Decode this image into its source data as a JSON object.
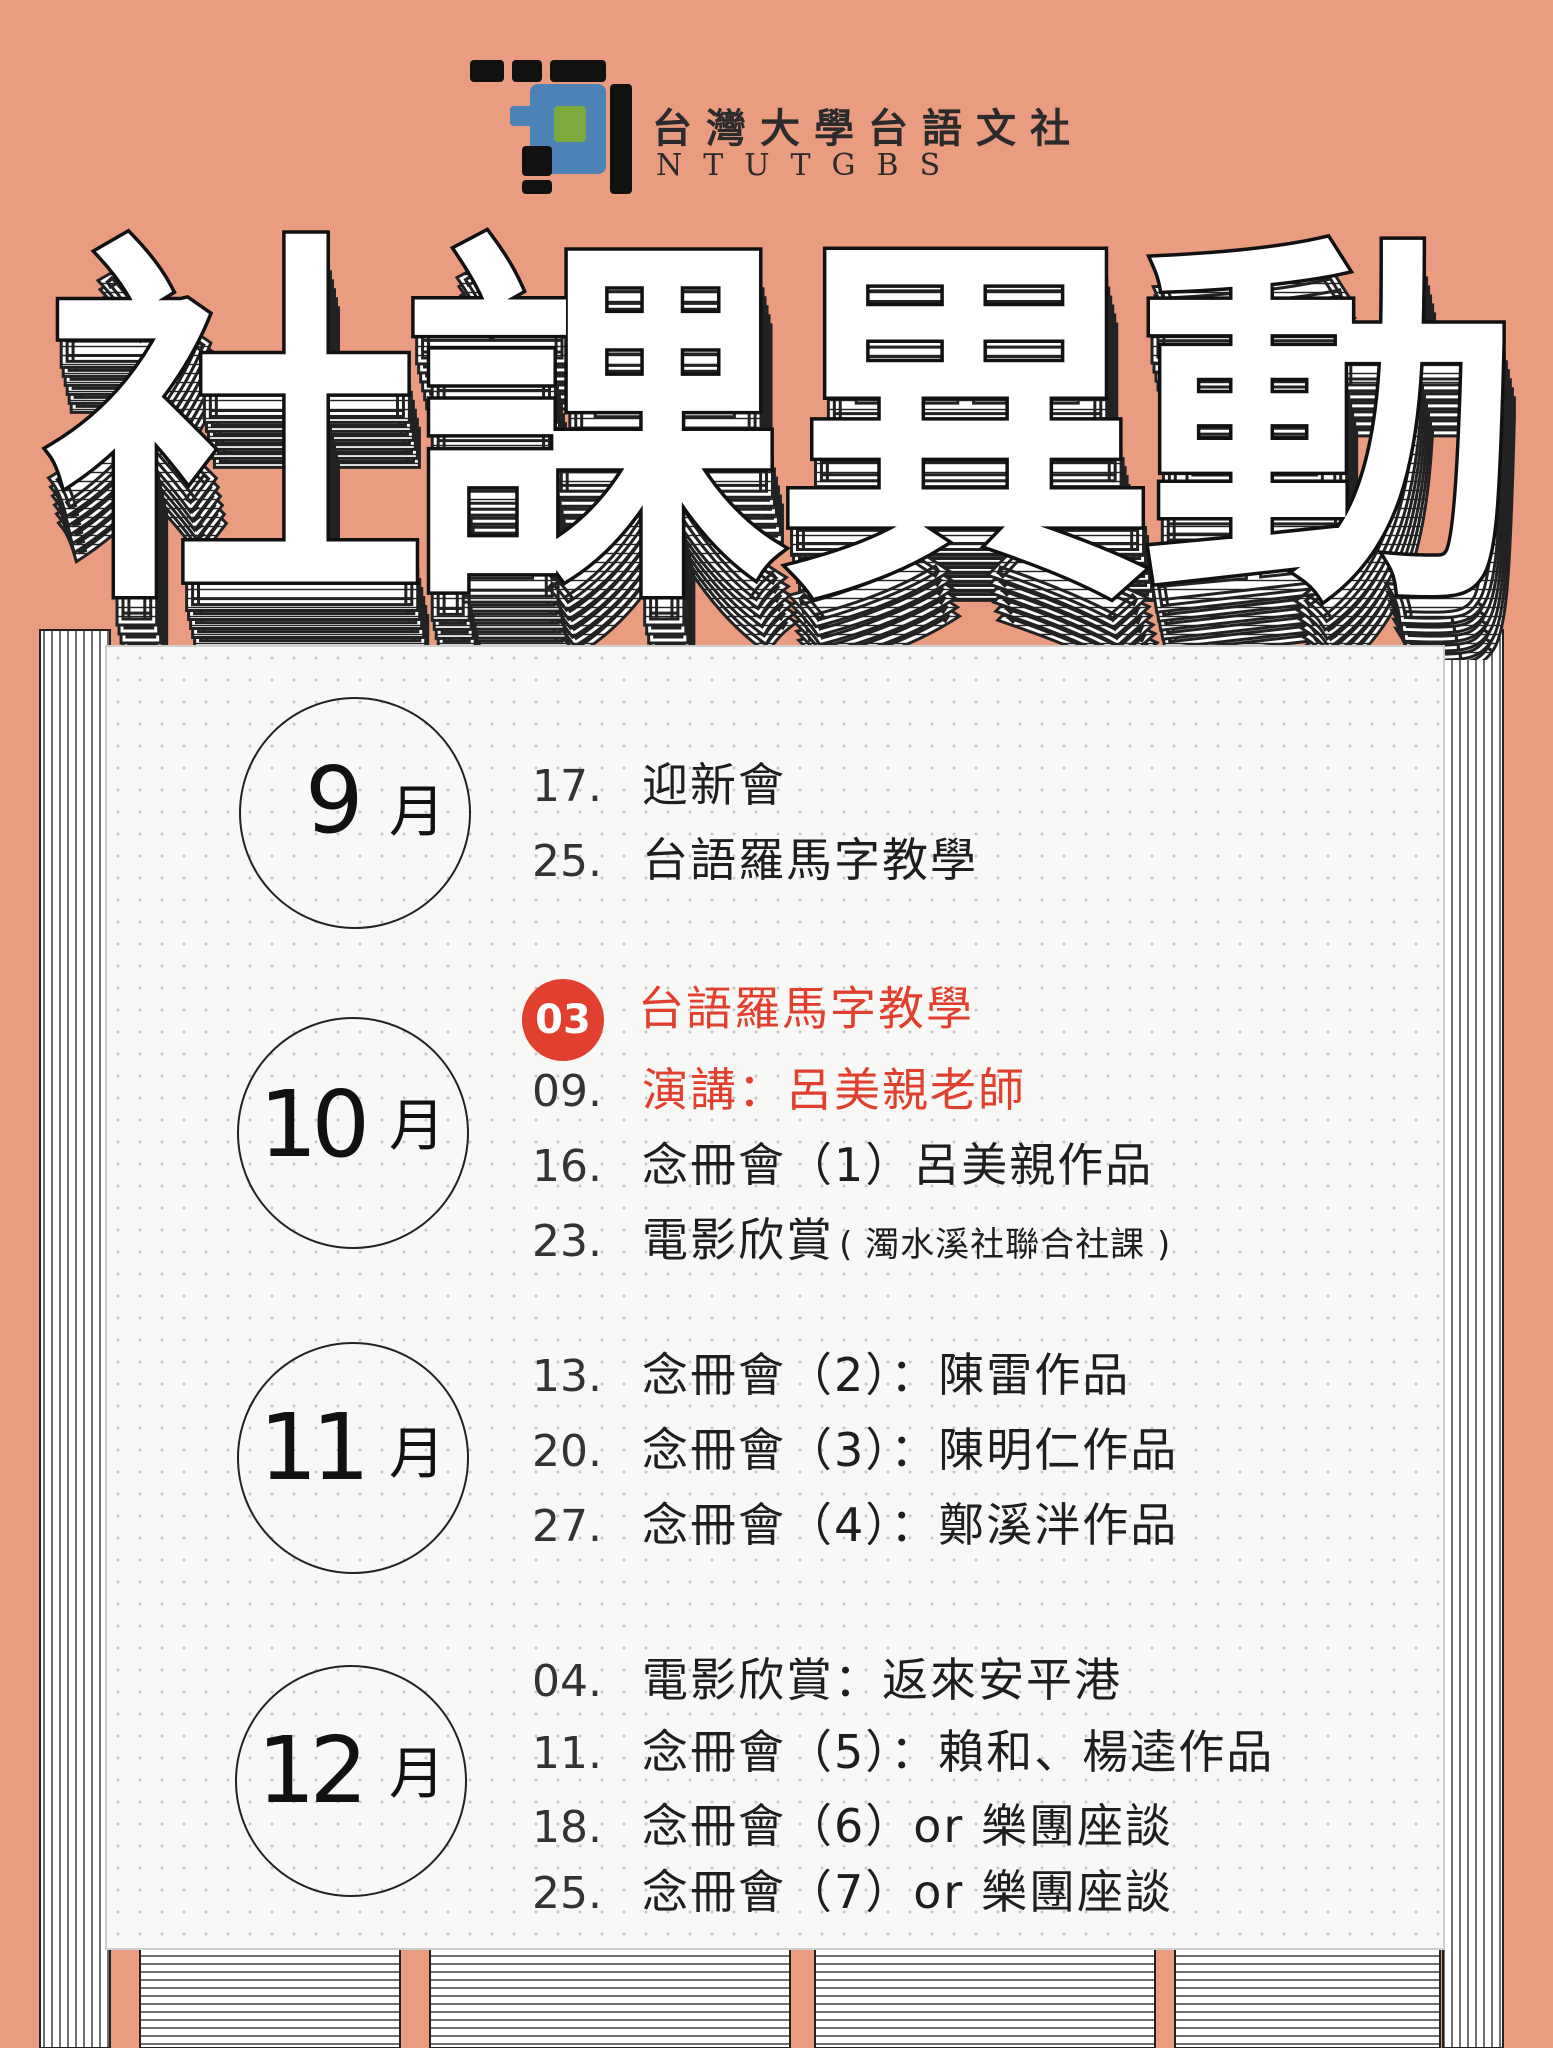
{
  "colors": {
    "background": "#E99C7F",
    "card": "#F8F8F6",
    "accent": "#E2402E",
    "logo_blue": "#4C82B5",
    "logo_green": "#7CAA3C",
    "logo_black": "#111111"
  },
  "header": {
    "logo_icon": "ntutgbs-logo-icon",
    "org_name": "台灣大學台語文社",
    "org_abbr": "NTUTGBS"
  },
  "title": {
    "chars": [
      "社",
      "課",
      "異",
      "動"
    ]
  },
  "schedule": [
    {
      "month_num": "9",
      "month_unit": "月",
      "events": [
        {
          "date": "17.",
          "text": "迎新會"
        },
        {
          "date": "25.",
          "text": "台語羅馬字教學"
        }
      ]
    },
    {
      "month_num": "10",
      "month_unit": "月",
      "events": [
        {
          "date": "03",
          "text": "台語羅馬字教學",
          "highlight": true,
          "badge": true
        },
        {
          "date": "09.",
          "text": "演講：呂美親老師",
          "highlight": true
        },
        {
          "date": "16.",
          "text": "念冊會（1）呂美親作品"
        },
        {
          "date": "23.",
          "text": "電影欣賞",
          "sub": "( 濁水溪社聯合社課 )"
        }
      ]
    },
    {
      "month_num": "11",
      "month_unit": "月",
      "events": [
        {
          "date": "13.",
          "text": "念冊會（2）：陳雷作品"
        },
        {
          "date": "20.",
          "text": "念冊會（3）：陳明仁作品"
        },
        {
          "date": "27.",
          "text": "念冊會（4）：鄭溪泮作品"
        }
      ]
    },
    {
      "month_num": "12",
      "month_unit": "月",
      "events": [
        {
          "date": "04.",
          "text": "電影欣賞：返來安平港"
        },
        {
          "date": "11.",
          "text": "念冊會（5）：賴和、楊逵作品"
        },
        {
          "date": "18.",
          "text": "念冊會（6）or 樂團座談"
        },
        {
          "date": "25.",
          "text": "念冊會（7）or 樂團座談"
        }
      ]
    }
  ]
}
